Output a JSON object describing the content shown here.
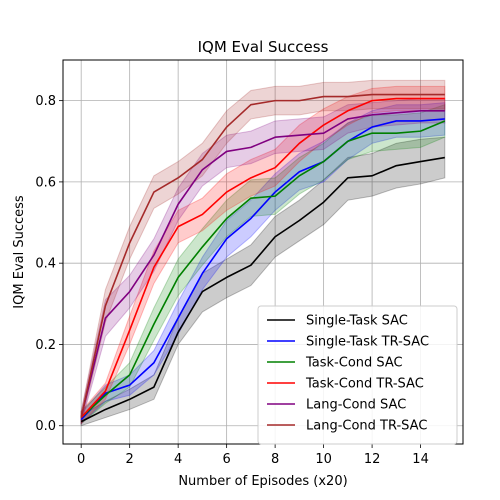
{
  "chart_data": {
    "type": "line",
    "title": "IQM Eval Success",
    "xlabel": "Number of Episodes (x20)",
    "ylabel": "IQM Eval Success",
    "xlim": [
      -0.75,
      15.75
    ],
    "ylim": [
      -0.045,
      0.9
    ],
    "xticks": [
      0,
      2,
      4,
      6,
      8,
      10,
      12,
      14
    ],
    "yticks": [
      0.0,
      0.2,
      0.4,
      0.6,
      0.8
    ],
    "grid": true,
    "legend_position": "lower-right",
    "x": [
      0,
      1,
      2,
      3,
      4,
      5,
      6,
      7,
      8,
      9,
      10,
      11,
      12,
      13,
      14,
      15
    ],
    "series": [
      {
        "name": "Single-Task SAC",
        "color": "#000000",
        "values": [
          0.01,
          0.04,
          0.065,
          0.095,
          0.23,
          0.33,
          0.365,
          0.395,
          0.465,
          0.505,
          0.55,
          0.61,
          0.615,
          0.64,
          0.65,
          0.66
        ],
        "lower": [
          0.0,
          0.02,
          0.04,
          0.065,
          0.2,
          0.28,
          0.315,
          0.345,
          0.415,
          0.455,
          0.495,
          0.555,
          0.565,
          0.585,
          0.595,
          0.61
        ],
        "upper": [
          0.025,
          0.06,
          0.09,
          0.125,
          0.265,
          0.375,
          0.41,
          0.445,
          0.515,
          0.555,
          0.605,
          0.66,
          0.67,
          0.695,
          0.705,
          0.71
        ]
      },
      {
        "name": "Single-Task TR-SAC",
        "color": "#0000ff",
        "values": [
          0.015,
          0.08,
          0.1,
          0.155,
          0.265,
          0.375,
          0.46,
          0.51,
          0.575,
          0.625,
          0.65,
          0.7,
          0.735,
          0.75,
          0.75,
          0.755
        ],
        "lower": [
          0.005,
          0.06,
          0.075,
          0.125,
          0.225,
          0.335,
          0.415,
          0.465,
          0.53,
          0.58,
          0.6,
          0.655,
          0.695,
          0.71,
          0.71,
          0.715
        ],
        "upper": [
          0.03,
          0.1,
          0.125,
          0.185,
          0.305,
          0.415,
          0.505,
          0.555,
          0.62,
          0.67,
          0.7,
          0.745,
          0.775,
          0.79,
          0.79,
          0.795
        ]
      },
      {
        "name": "Task-Cond SAC",
        "color": "#008000",
        "values": [
          0.02,
          0.075,
          0.125,
          0.25,
          0.365,
          0.44,
          0.51,
          0.56,
          0.565,
          0.615,
          0.65,
          0.7,
          0.72,
          0.72,
          0.725,
          0.75
        ],
        "lower": [
          0.005,
          0.055,
          0.095,
          0.21,
          0.32,
          0.395,
          0.465,
          0.515,
          0.52,
          0.57,
          0.605,
          0.655,
          0.675,
          0.68,
          0.685,
          0.71
        ],
        "upper": [
          0.035,
          0.095,
          0.155,
          0.29,
          0.41,
          0.485,
          0.555,
          0.605,
          0.61,
          0.66,
          0.695,
          0.745,
          0.765,
          0.765,
          0.77,
          0.79
        ]
      },
      {
        "name": "Task-Cond TR-SAC",
        "color": "#ff0000",
        "values": [
          0.02,
          0.085,
          0.235,
          0.39,
          0.49,
          0.52,
          0.575,
          0.61,
          0.635,
          0.695,
          0.74,
          0.775,
          0.8,
          0.805,
          0.805,
          0.805
        ],
        "lower": [
          0.005,
          0.065,
          0.2,
          0.35,
          0.45,
          0.48,
          0.53,
          0.565,
          0.59,
          0.65,
          0.7,
          0.74,
          0.77,
          0.775,
          0.775,
          0.775
        ],
        "upper": [
          0.035,
          0.105,
          0.27,
          0.43,
          0.53,
          0.56,
          0.62,
          0.655,
          0.68,
          0.74,
          0.78,
          0.81,
          0.83,
          0.835,
          0.835,
          0.835
        ]
      },
      {
        "name": "Lang-Cond SAC",
        "color": "#800080",
        "values": [
          0.02,
          0.265,
          0.33,
          0.42,
          0.545,
          0.63,
          0.675,
          0.685,
          0.71,
          0.715,
          0.72,
          0.755,
          0.765,
          0.77,
          0.775,
          0.775
        ],
        "lower": [
          0.005,
          0.22,
          0.29,
          0.38,
          0.505,
          0.59,
          0.635,
          0.645,
          0.67,
          0.675,
          0.68,
          0.72,
          0.735,
          0.74,
          0.745,
          0.745
        ],
        "upper": [
          0.035,
          0.31,
          0.37,
          0.46,
          0.585,
          0.67,
          0.715,
          0.725,
          0.75,
          0.755,
          0.76,
          0.79,
          0.795,
          0.8,
          0.805,
          0.805
        ]
      },
      {
        "name": "Lang-Cond TR-SAC",
        "color": "#a52a2a",
        "values": [
          0.02,
          0.295,
          0.45,
          0.575,
          0.61,
          0.655,
          0.735,
          0.79,
          0.8,
          0.8,
          0.81,
          0.81,
          0.815,
          0.815,
          0.815,
          0.815
        ],
        "lower": [
          0.005,
          0.255,
          0.41,
          0.535,
          0.57,
          0.615,
          0.695,
          0.755,
          0.765,
          0.765,
          0.775,
          0.775,
          0.78,
          0.78,
          0.78,
          0.78
        ],
        "upper": [
          0.035,
          0.335,
          0.49,
          0.615,
          0.65,
          0.695,
          0.775,
          0.825,
          0.835,
          0.835,
          0.845,
          0.845,
          0.85,
          0.85,
          0.85,
          0.85
        ]
      }
    ]
  }
}
